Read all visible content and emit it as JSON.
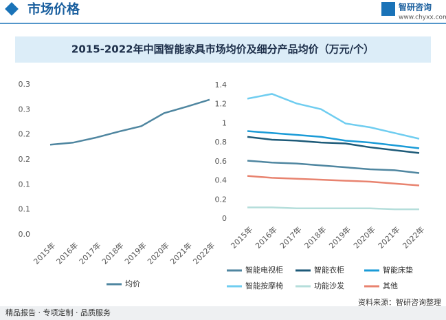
{
  "header": {
    "title": "市场价格",
    "logo": "智研咨询",
    "url": "www.chyxx.com"
  },
  "title": "2015-2022年中国智能家具市场均价及细分产品均价（万元/个）",
  "chart_data": [
    {
      "type": "line",
      "categories": [
        "2015年",
        "2016年",
        "2017年",
        "2018年",
        "2019年",
        "2020年",
        "2021年",
        "2022年"
      ],
      "series": [
        {
          "name": "均价",
          "color": "#4f86a0",
          "values": [
            0.18,
            0.184,
            0.194,
            0.206,
            0.217,
            0.243,
            0.256,
            0.27
          ]
        }
      ],
      "ylim": [
        0,
        0.3
      ],
      "yticks": [
        {
          "value": 0,
          "label": "0.0"
        },
        {
          "value": 0.05,
          "label": "0.1"
        },
        0.1,
        {
          "value": 0.15,
          "label": "0.2"
        },
        0.2,
        {
          "value": 0.25,
          "label": "0.3"
        },
        0.3
      ],
      "grid": false
    },
    {
      "type": "line",
      "categories": [
        "2015年",
        "2016年",
        "2017年",
        "2018年",
        "2019年",
        "2020年",
        "2021年",
        "2022年"
      ],
      "series": [
        {
          "name": "智能电视柜",
          "color": "#4f86a0",
          "values": [
            0.61,
            0.59,
            0.58,
            0.56,
            0.54,
            0.52,
            0.51,
            0.48
          ]
        },
        {
          "name": "智能衣柜",
          "color": "#1d5a78",
          "values": [
            0.86,
            0.83,
            0.82,
            0.8,
            0.79,
            0.75,
            0.72,
            0.69
          ]
        },
        {
          "name": "智能床垫",
          "color": "#1a9bd7",
          "values": [
            0.92,
            0.9,
            0.88,
            0.86,
            0.82,
            0.8,
            0.77,
            0.74
          ]
        },
        {
          "name": "智能按摩椅",
          "color": "#6fcdf0",
          "values": [
            1.26,
            1.31,
            1.21,
            1.15,
            1.0,
            0.96,
            0.9,
            0.84
          ]
        },
        {
          "name": "功能沙发",
          "color": "#b5dedb",
          "values": [
            0.12,
            0.12,
            0.11,
            0.11,
            0.11,
            0.11,
            0.1,
            0.1
          ]
        },
        {
          "name": "其他",
          "color": "#e8836f",
          "values": [
            0.45,
            0.43,
            0.42,
            0.41,
            0.4,
            0.39,
            0.37,
            0.35
          ]
        }
      ],
      "ylim": [
        0,
        1.4
      ],
      "yticks": [
        0,
        0.2,
        0.4,
        0.6,
        0.8,
        1,
        1.2,
        1.4
      ],
      "grid": false
    }
  ],
  "footer": {
    "left": "精品报告 · 专项定制 · 品质服务",
    "right": "资料来源：智研咨询整理"
  }
}
